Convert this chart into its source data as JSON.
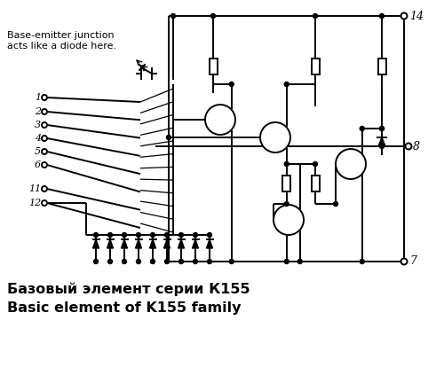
{
  "title_russian": "Базовый элемент серии К155",
  "title_english": "Basic element of K155 family",
  "annotation_line1": "Base-emitter junction",
  "annotation_line2": "acts like a diode here.",
  "background_color": "#ffffff",
  "line_color": "#000000",
  "lw": 1.4,
  "fig_w": 5.0,
  "fig_h": 4.23,
  "dpi": 100
}
